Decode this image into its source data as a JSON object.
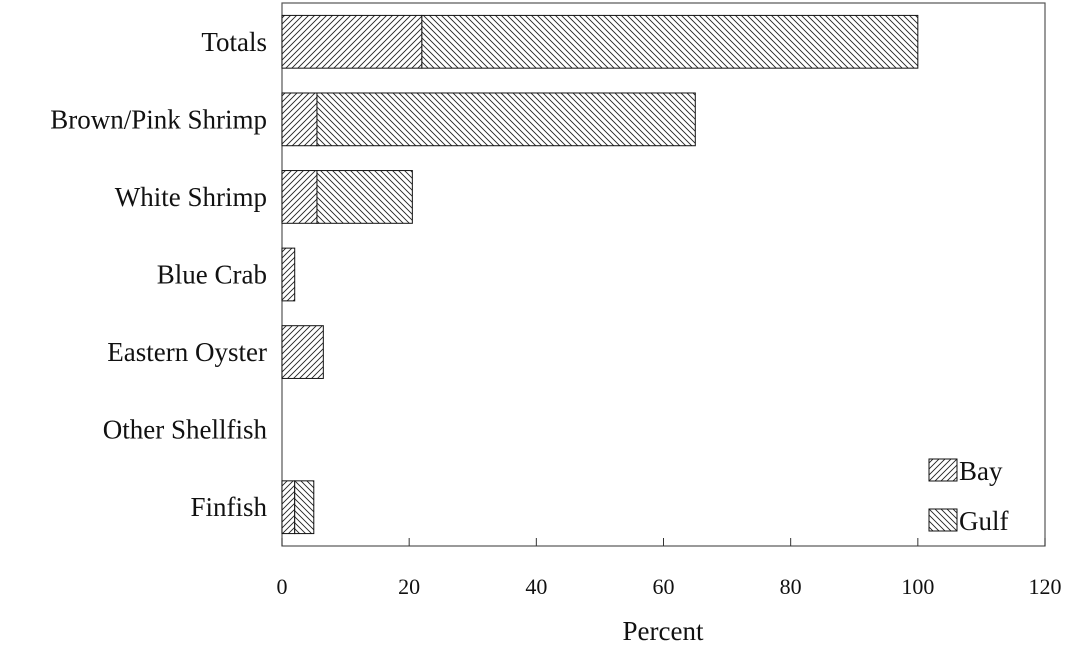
{
  "chart_data": {
    "type": "bar",
    "orientation": "horizontal",
    "stacked": true,
    "categories": [
      "Totals",
      "Brown/Pink Shrimp",
      "White Shrimp",
      "Blue Crab",
      "Eastern Oyster",
      "Other Shellfish",
      "Finfish"
    ],
    "series": [
      {
        "name": "Bay",
        "values": [
          22,
          5.5,
          5.5,
          2,
          6.5,
          0,
          2
        ],
        "pattern": "forward-diagonal"
      },
      {
        "name": "Gulf",
        "values": [
          78,
          59.5,
          15,
          0,
          0,
          0,
          3
        ],
        "pattern": "backward-diagonal"
      }
    ],
    "xlabel": "Percent",
    "ylabel": "",
    "xlim": [
      0,
      120
    ],
    "xticks": [
      0,
      20,
      40,
      60,
      80,
      100,
      120
    ],
    "grid": false,
    "legend_position": "bottom-right",
    "colors": {
      "bar_stroke": "#111111",
      "hatch": "#222222",
      "background": "#ffffff"
    }
  }
}
